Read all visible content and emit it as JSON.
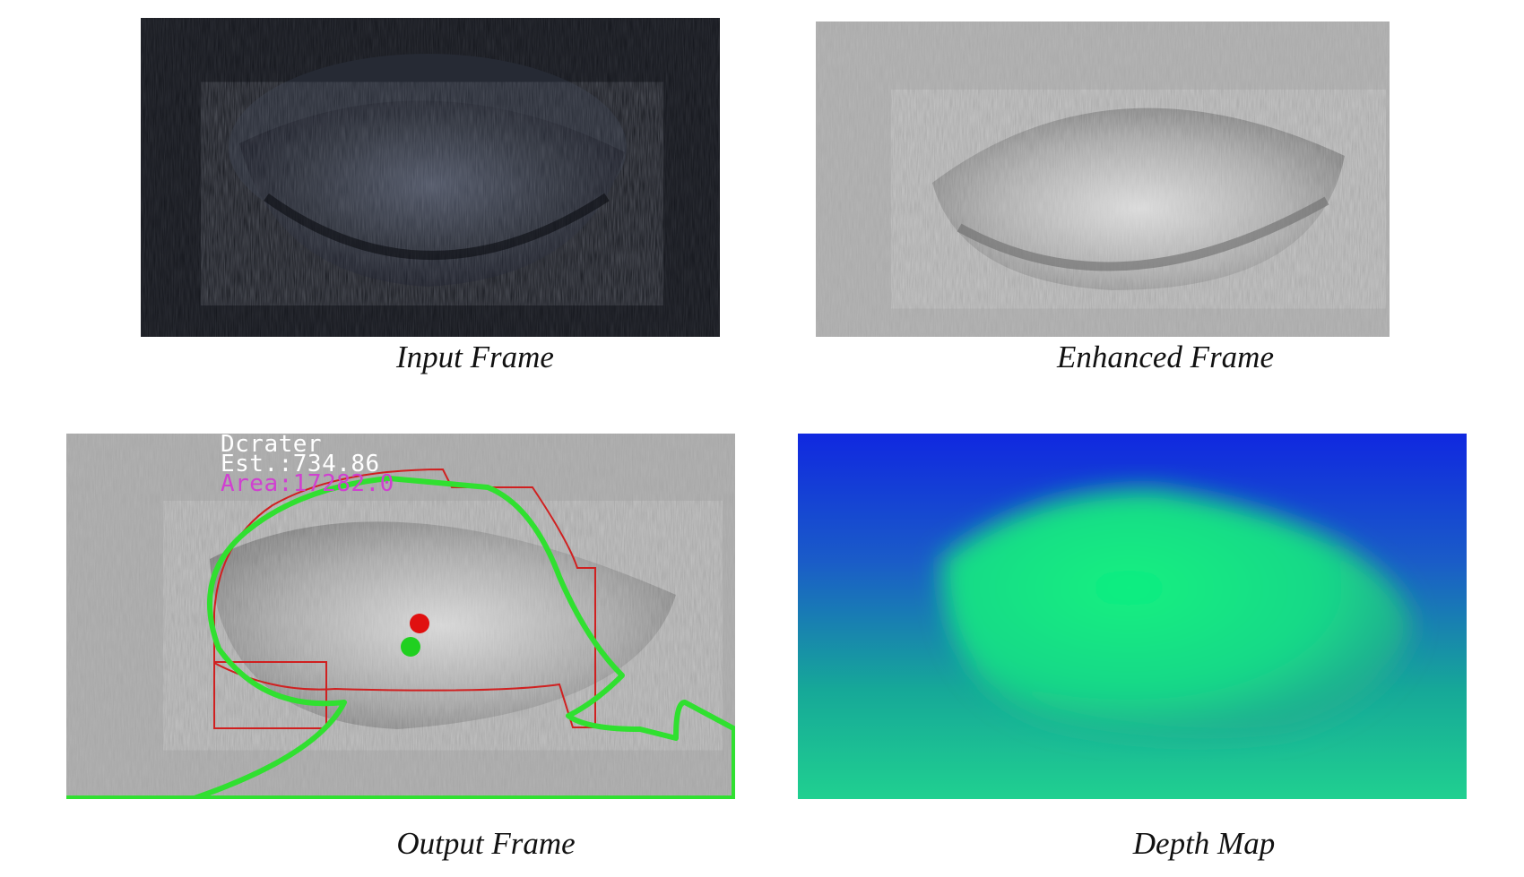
{
  "figure": {
    "panels": [
      {
        "id": "input",
        "caption": "Input Frame"
      },
      {
        "id": "enhanced",
        "caption": "Enhanced Frame"
      },
      {
        "id": "output",
        "caption": "Output Frame"
      },
      {
        "id": "depth",
        "caption": "Depth Map"
      }
    ],
    "output_overlay": {
      "label": "Dcrater",
      "estimate": "Est.:734.86",
      "area": "Area:17282.0",
      "colors": {
        "label_text": "#ffffff",
        "area_text": "#d040d0",
        "contour": "#30e030",
        "bounding": "#d02020",
        "center_red": "#e01010",
        "center_green": "#20d020"
      }
    },
    "depth_colors": {
      "top": "#1030e8",
      "mid": "#10e080",
      "bottom": "#20c090"
    }
  }
}
